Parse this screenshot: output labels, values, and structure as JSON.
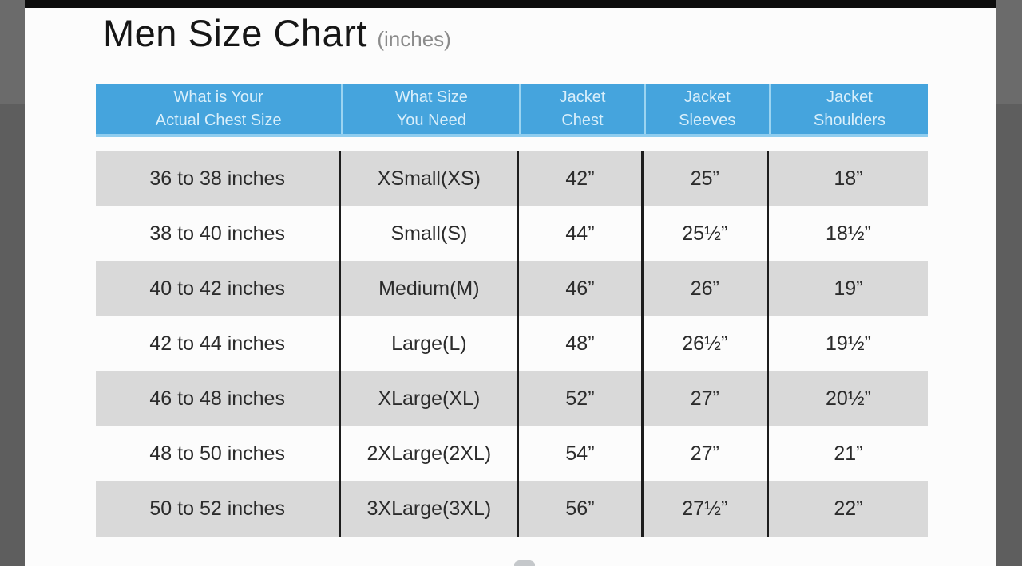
{
  "title": "Men Size Chart",
  "title_unit": "(inches)",
  "header": {
    "columns": [
      {
        "line1": "What is Your",
        "line2": "Actual Chest Size"
      },
      {
        "line1": "What Size",
        "line2": "You Need"
      },
      {
        "line1": "Jacket",
        "line2": "Chest"
      },
      {
        "line1": "Jacket",
        "line2": "Sleeves"
      },
      {
        "line1": "Jacket",
        "line2": "Shoulders"
      }
    ]
  },
  "chart_data": {
    "type": "table",
    "title": "Men Size Chart (inches)",
    "columns": [
      "What is Your Actual Chest Size",
      "What Size You Need",
      "Jacket Chest",
      "Jacket Sleeves",
      "Jacket Shoulders"
    ],
    "rows": [
      [
        "36 to 38 inches",
        "XSmall(XS)",
        "42”",
        "25”",
        "18”"
      ],
      [
        "38 to 40 inches",
        "Small(S)",
        "44”",
        "25½”",
        "18½”"
      ],
      [
        "40 to 42 inches",
        "Medium(M)",
        "46”",
        "26”",
        "19”"
      ],
      [
        "42 to 44 inches",
        "Large(L)",
        "48”",
        "26½”",
        "19½”"
      ],
      [
        "46 to 48 inches",
        "XLarge(XL)",
        "52”",
        "27”",
        "20½”"
      ],
      [
        "48 to 50 inches",
        "2XLarge(2XL)",
        "54”",
        "27”",
        "21”"
      ],
      [
        "50 to 52 inches",
        "3XLarge(3XL)",
        "56”",
        "27½”",
        "22”"
      ]
    ]
  },
  "colors": {
    "header_bg": "#45a4dd",
    "header_text": "#d9effb",
    "header_divider": "#9bd4f1",
    "row_alt_bg": "#d9d9d9",
    "column_line": "#1d1d1d",
    "side_strip": "#6b6b6b",
    "top_bar": "#0d0d0d",
    "title_text": "#161616",
    "unit_text": "#8b8b8b"
  }
}
